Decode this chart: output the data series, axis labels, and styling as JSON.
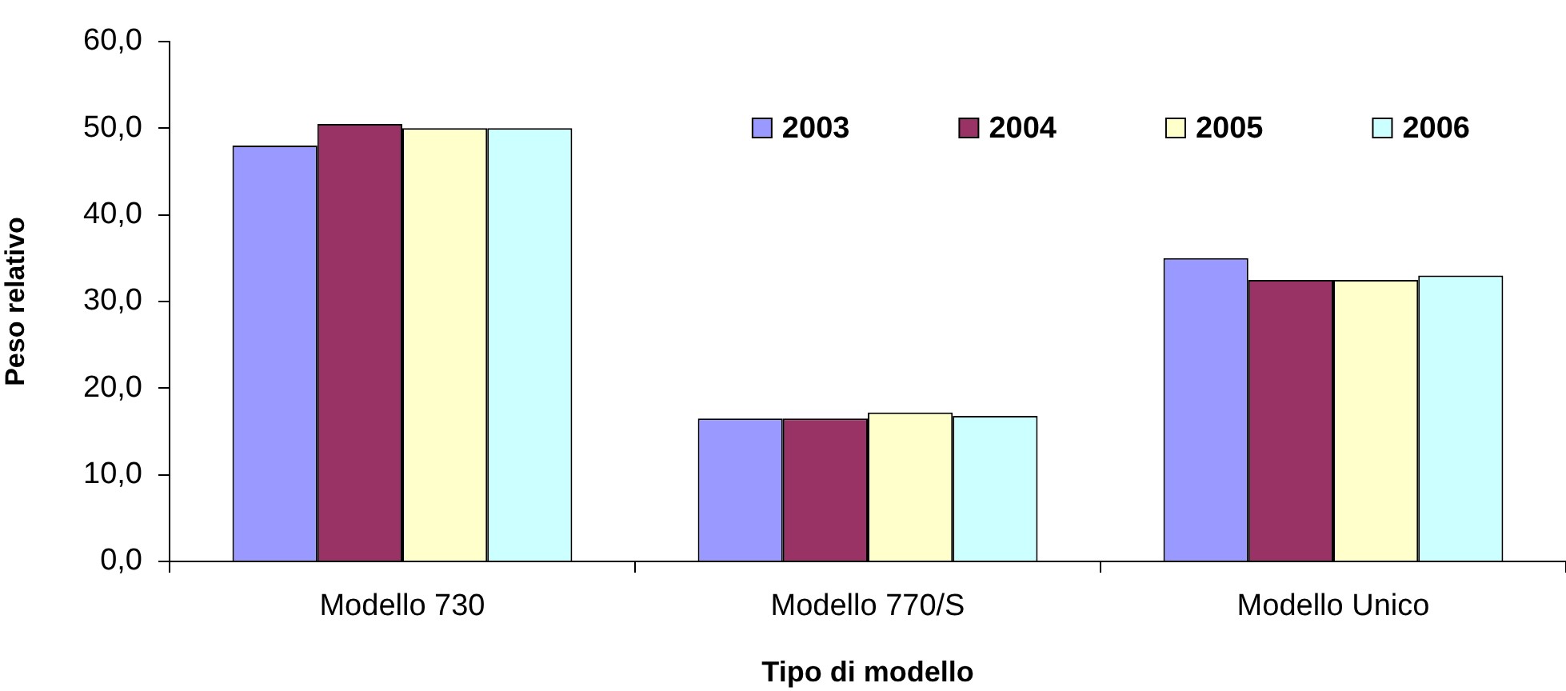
{
  "chart_data": {
    "type": "bar",
    "xlabel": "Tipo di modello",
    "ylabel": "Peso relativo",
    "categories": [
      "Modello 730",
      "Modello 770/S",
      "Modello Unico"
    ],
    "series": [
      {
        "name": "2003",
        "color": "#9999ff",
        "values": [
          48,
          16.5,
          35
        ]
      },
      {
        "name": "2004",
        "color": "#993366",
        "values": [
          50.5,
          16.5,
          32.5
        ]
      },
      {
        "name": "2005",
        "color": "#ffffcc",
        "values": [
          50,
          17.2,
          32.5
        ]
      },
      {
        "name": "2006",
        "color": "#ccffff",
        "values": [
          50,
          16.8,
          33
        ]
      }
    ],
    "ylim": [
      0,
      60
    ],
    "yticks": [
      {
        "value": 0,
        "label": "0,0"
      },
      {
        "value": 10,
        "label": "10,0"
      },
      {
        "value": 20,
        "label": "20,0"
      },
      {
        "value": 30,
        "label": "30,0"
      },
      {
        "value": 40,
        "label": "40,0"
      },
      {
        "value": 50,
        "label": "50,0"
      },
      {
        "value": 60,
        "label": "60,0"
      }
    ],
    "grid": false,
    "legend": "top right"
  }
}
